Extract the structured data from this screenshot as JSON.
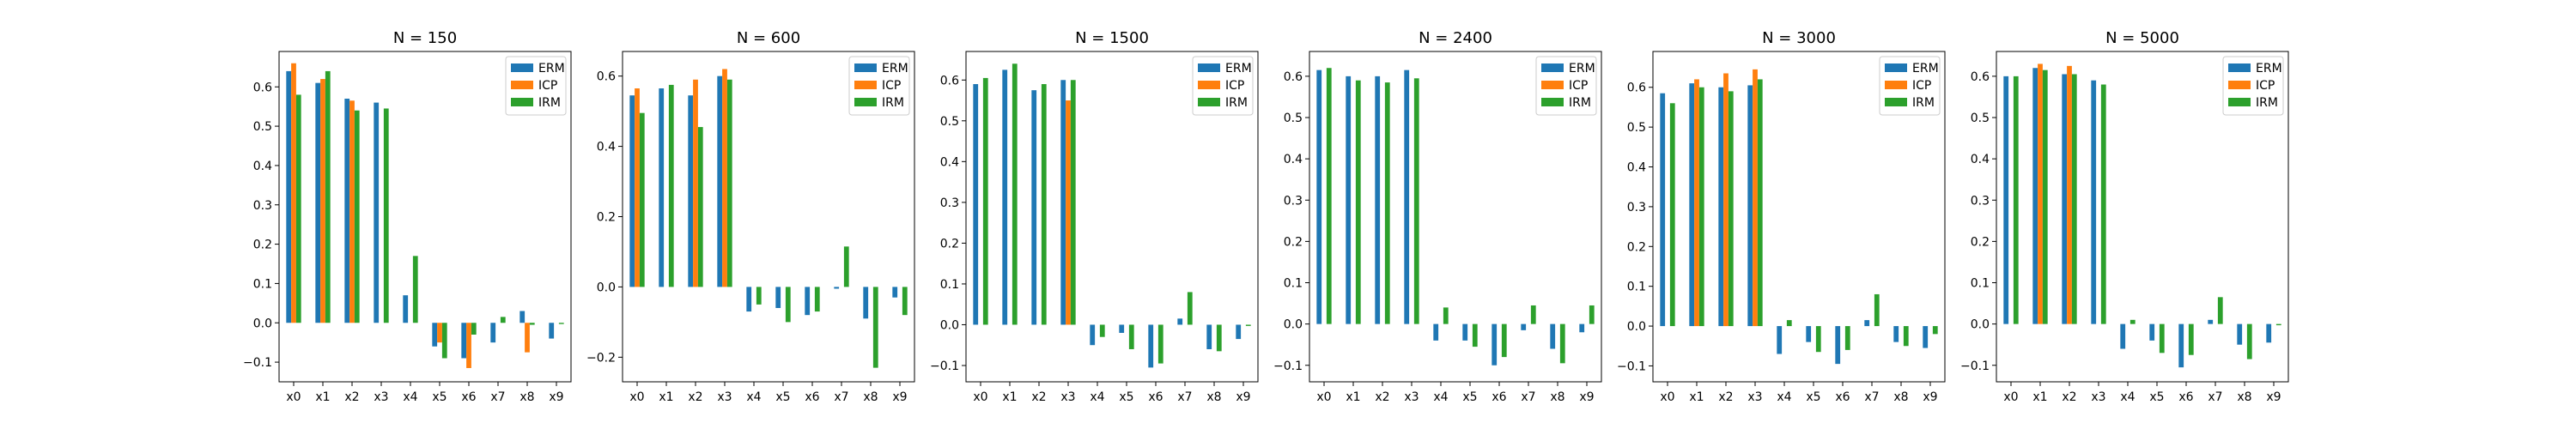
{
  "colors": {
    "ERM": "#1f77b4",
    "ICP": "#ff7f0e",
    "IRM": "#2ca02c"
  },
  "chart_data": [
    {
      "type": "bar",
      "title": "N = 150",
      "categories": [
        "x0",
        "x1",
        "x2",
        "x3",
        "x4",
        "x5",
        "x6",
        "x7",
        "x8",
        "x9"
      ],
      "ylim": [
        -0.15,
        0.69
      ],
      "yticks": [
        -0.1,
        0.0,
        0.1,
        0.2,
        0.3,
        0.4,
        0.5,
        0.6
      ],
      "legend": "top-right",
      "series": [
        {
          "name": "ERM",
          "values": [
            0.64,
            0.61,
            0.57,
            0.56,
            0.07,
            -0.06,
            -0.09,
            -0.05,
            0.03,
            -0.04
          ]
        },
        {
          "name": "ICP",
          "values": [
            0.66,
            0.62,
            0.565,
            0,
            0,
            -0.05,
            -0.115,
            0,
            -0.075,
            0
          ]
        },
        {
          "name": "IRM",
          "values": [
            0.58,
            0.64,
            0.54,
            0.545,
            0.17,
            -0.09,
            -0.03,
            0.015,
            -0.005,
            -0.003
          ]
        }
      ]
    },
    {
      "type": "bar",
      "title": "N = 600",
      "categories": [
        "x0",
        "x1",
        "x2",
        "x3",
        "x4",
        "x5",
        "x6",
        "x7",
        "x8",
        "x9"
      ],
      "ylim": [
        -0.27,
        0.67
      ],
      "yticks": [
        -0.2,
        0.0,
        0.2,
        0.4,
        0.6
      ],
      "legend": "top-right",
      "series": [
        {
          "name": "ERM",
          "values": [
            0.545,
            0.565,
            0.545,
            0.6,
            -0.07,
            -0.06,
            -0.08,
            -0.005,
            -0.09,
            -0.03
          ]
        },
        {
          "name": "ICP",
          "values": [
            0.565,
            0,
            0.59,
            0.62,
            0,
            0,
            0,
            0,
            0,
            0
          ]
        },
        {
          "name": "IRM",
          "values": [
            0.495,
            0.575,
            0.455,
            0.59,
            -0.05,
            -0.1,
            -0.07,
            0.115,
            -0.23,
            -0.08
          ]
        }
      ]
    },
    {
      "type": "bar",
      "title": "N = 1500",
      "categories": [
        "x0",
        "x1",
        "x2",
        "x3",
        "x4",
        "x5",
        "x6",
        "x7",
        "x8",
        "x9"
      ],
      "ylim": [
        -0.14,
        0.67
      ],
      "yticks": [
        -0.1,
        0.0,
        0.1,
        0.2,
        0.3,
        0.4,
        0.5,
        0.6
      ],
      "legend": "top-right",
      "series": [
        {
          "name": "ERM",
          "values": [
            0.59,
            0.625,
            0.575,
            0.6,
            -0.05,
            -0.02,
            -0.105,
            0.015,
            -0.06,
            -0.035
          ]
        },
        {
          "name": "ICP",
          "values": [
            0,
            0,
            0,
            0.55,
            0,
            0,
            0,
            0,
            0,
            0
          ]
        },
        {
          "name": "IRM",
          "values": [
            0.605,
            0.64,
            0.59,
            0.6,
            -0.03,
            -0.06,
            -0.095,
            0.08,
            -0.065,
            -0.003
          ]
        }
      ]
    },
    {
      "type": "bar",
      "title": "N = 2400",
      "categories": [
        "x0",
        "x1",
        "x2",
        "x3",
        "x4",
        "x5",
        "x6",
        "x7",
        "x8",
        "x9"
      ],
      "ylim": [
        -0.14,
        0.66
      ],
      "yticks": [
        -0.1,
        0.0,
        0.1,
        0.2,
        0.3,
        0.4,
        0.5,
        0.6
      ],
      "legend": "top-right",
      "series": [
        {
          "name": "ERM",
          "values": [
            0.615,
            0.6,
            0.6,
            0.615,
            -0.04,
            -0.04,
            -0.1,
            -0.015,
            -0.06,
            -0.02
          ]
        },
        {
          "name": "ICP",
          "values": [
            0,
            0,
            0,
            0,
            0,
            0,
            0,
            0,
            0,
            0
          ]
        },
        {
          "name": "IRM",
          "values": [
            0.62,
            0.59,
            0.585,
            0.595,
            0.04,
            -0.055,
            -0.08,
            0.045,
            -0.095,
            0.045
          ]
        }
      ]
    },
    {
      "type": "bar",
      "title": "N = 3000",
      "categories": [
        "x0",
        "x1",
        "x2",
        "x3",
        "x4",
        "x5",
        "x6",
        "x7",
        "x8",
        "x9"
      ],
      "ylim": [
        -0.14,
        0.69
      ],
      "yticks": [
        -0.1,
        0.0,
        0.1,
        0.2,
        0.3,
        0.4,
        0.5,
        0.6
      ],
      "legend": "top-right",
      "series": [
        {
          "name": "ERM",
          "values": [
            0.585,
            0.61,
            0.6,
            0.605,
            -0.07,
            -0.04,
            -0.095,
            0.015,
            -0.04,
            -0.055
          ]
        },
        {
          "name": "ICP",
          "values": [
            0,
            0.62,
            0.635,
            0.645,
            0,
            0,
            0,
            0,
            0,
            0
          ]
        },
        {
          "name": "IRM",
          "values": [
            0.56,
            0.6,
            0.59,
            0.62,
            0.015,
            -0.065,
            -0.06,
            0.08,
            -0.05,
            -0.02
          ]
        }
      ]
    },
    {
      "type": "bar",
      "title": "N = 5000",
      "categories": [
        "x0",
        "x1",
        "x2",
        "x3",
        "x4",
        "x5",
        "x6",
        "x7",
        "x8",
        "x9"
      ],
      "ylim": [
        -0.14,
        0.66
      ],
      "yticks": [
        -0.1,
        0.0,
        0.1,
        0.2,
        0.3,
        0.4,
        0.5,
        0.6
      ],
      "legend": "top-right",
      "series": [
        {
          "name": "ERM",
          "values": [
            0.6,
            0.62,
            0.605,
            0.59,
            -0.06,
            -0.04,
            -0.105,
            0.01,
            -0.05,
            -0.045
          ]
        },
        {
          "name": "ICP",
          "values": [
            0,
            0.63,
            0.625,
            0,
            0,
            0,
            0,
            0,
            0,
            0
          ]
        },
        {
          "name": "IRM",
          "values": [
            0.6,
            0.615,
            0.605,
            0.58,
            0.01,
            -0.07,
            -0.075,
            0.065,
            -0.085,
            -0.003
          ]
        }
      ]
    }
  ]
}
